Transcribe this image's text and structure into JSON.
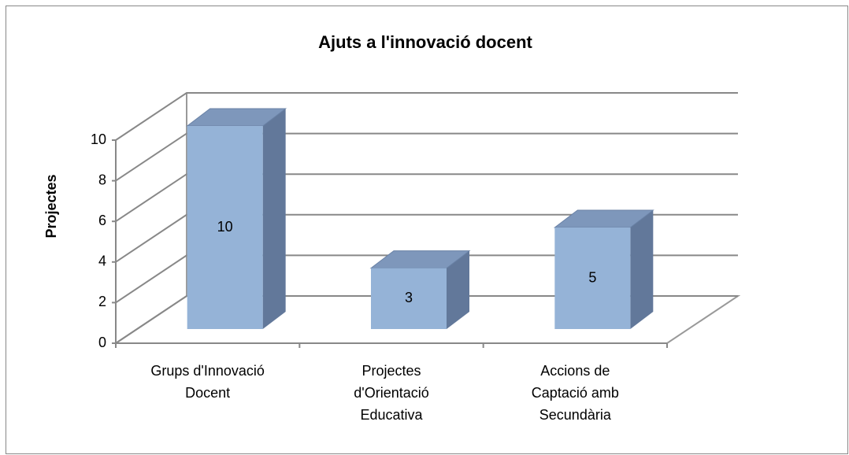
{
  "chart_data": {
    "type": "bar3d",
    "title": "Ajuts a l'innovació docent",
    "y_label": "Projectes",
    "categories": [
      [
        "Grups d'Innovació",
        "Docent"
      ],
      [
        "Projectes",
        "d'Orientació",
        "Educativa"
      ],
      [
        "Accions de",
        "Captació amb",
        "Secundària"
      ]
    ],
    "values": [
      10,
      3,
      5
    ],
    "color": "#95b3d7",
    "ylim": [
      0,
      10
    ],
    "yticks": [
      0,
      2,
      4,
      6,
      8,
      10
    ],
    "grid": true
  }
}
